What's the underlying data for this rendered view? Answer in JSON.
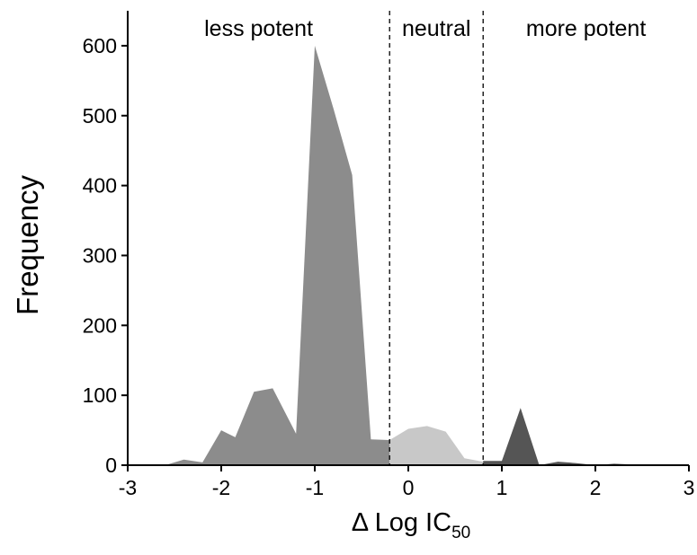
{
  "chart_data": {
    "type": "area",
    "xlabel": "Δ Log IC",
    "xlabel_sub": "50",
    "ylabel": "Frequency",
    "xlim": [
      -3,
      3
    ],
    "ylim": [
      0,
      650
    ],
    "xticks": [
      -3,
      -2,
      -1,
      0,
      1,
      2,
      3
    ],
    "yticks": [
      0,
      100,
      200,
      300,
      400,
      500,
      600
    ],
    "grid": false,
    "thresholds": [
      -0.2,
      0.8
    ],
    "regions": [
      {
        "label": "less potent",
        "x_center": -1.6
      },
      {
        "label": "neutral",
        "x_center": 0.3
      },
      {
        "label": "more potent",
        "x_center": 1.9
      }
    ],
    "series": [
      {
        "color": "#8c8c8c",
        "points": [
          [
            -3.0,
            0
          ],
          [
            -2.6,
            0
          ],
          [
            -2.4,
            8
          ],
          [
            -2.2,
            4
          ],
          [
            -2.0,
            50
          ],
          [
            -1.85,
            40
          ],
          [
            -1.65,
            105
          ],
          [
            -1.45,
            110
          ],
          [
            -1.2,
            45
          ],
          [
            -1.0,
            600
          ],
          [
            -0.8,
            510
          ],
          [
            -0.6,
            415
          ],
          [
            -0.4,
            37
          ],
          [
            -0.2,
            36
          ],
          [
            -0.2,
            0
          ]
        ]
      },
      {
        "color": "#c8c8c8",
        "points": [
          [
            -0.2,
            0
          ],
          [
            -0.2,
            36
          ],
          [
            0.0,
            52
          ],
          [
            0.2,
            56
          ],
          [
            0.4,
            48
          ],
          [
            0.6,
            10
          ],
          [
            0.8,
            5
          ],
          [
            0.8,
            0
          ]
        ]
      },
      {
        "color": "#555555",
        "points": [
          [
            0.8,
            0
          ],
          [
            0.8,
            6
          ],
          [
            1.0,
            6
          ],
          [
            1.2,
            82
          ],
          [
            1.4,
            0
          ],
          [
            1.6,
            5
          ],
          [
            1.8,
            3
          ],
          [
            2.0,
            0
          ]
        ]
      },
      {
        "color": "#555555",
        "points": [
          [
            2.0,
            0
          ],
          [
            2.2,
            2
          ],
          [
            2.4,
            1
          ],
          [
            2.6,
            0
          ]
        ]
      }
    ]
  }
}
